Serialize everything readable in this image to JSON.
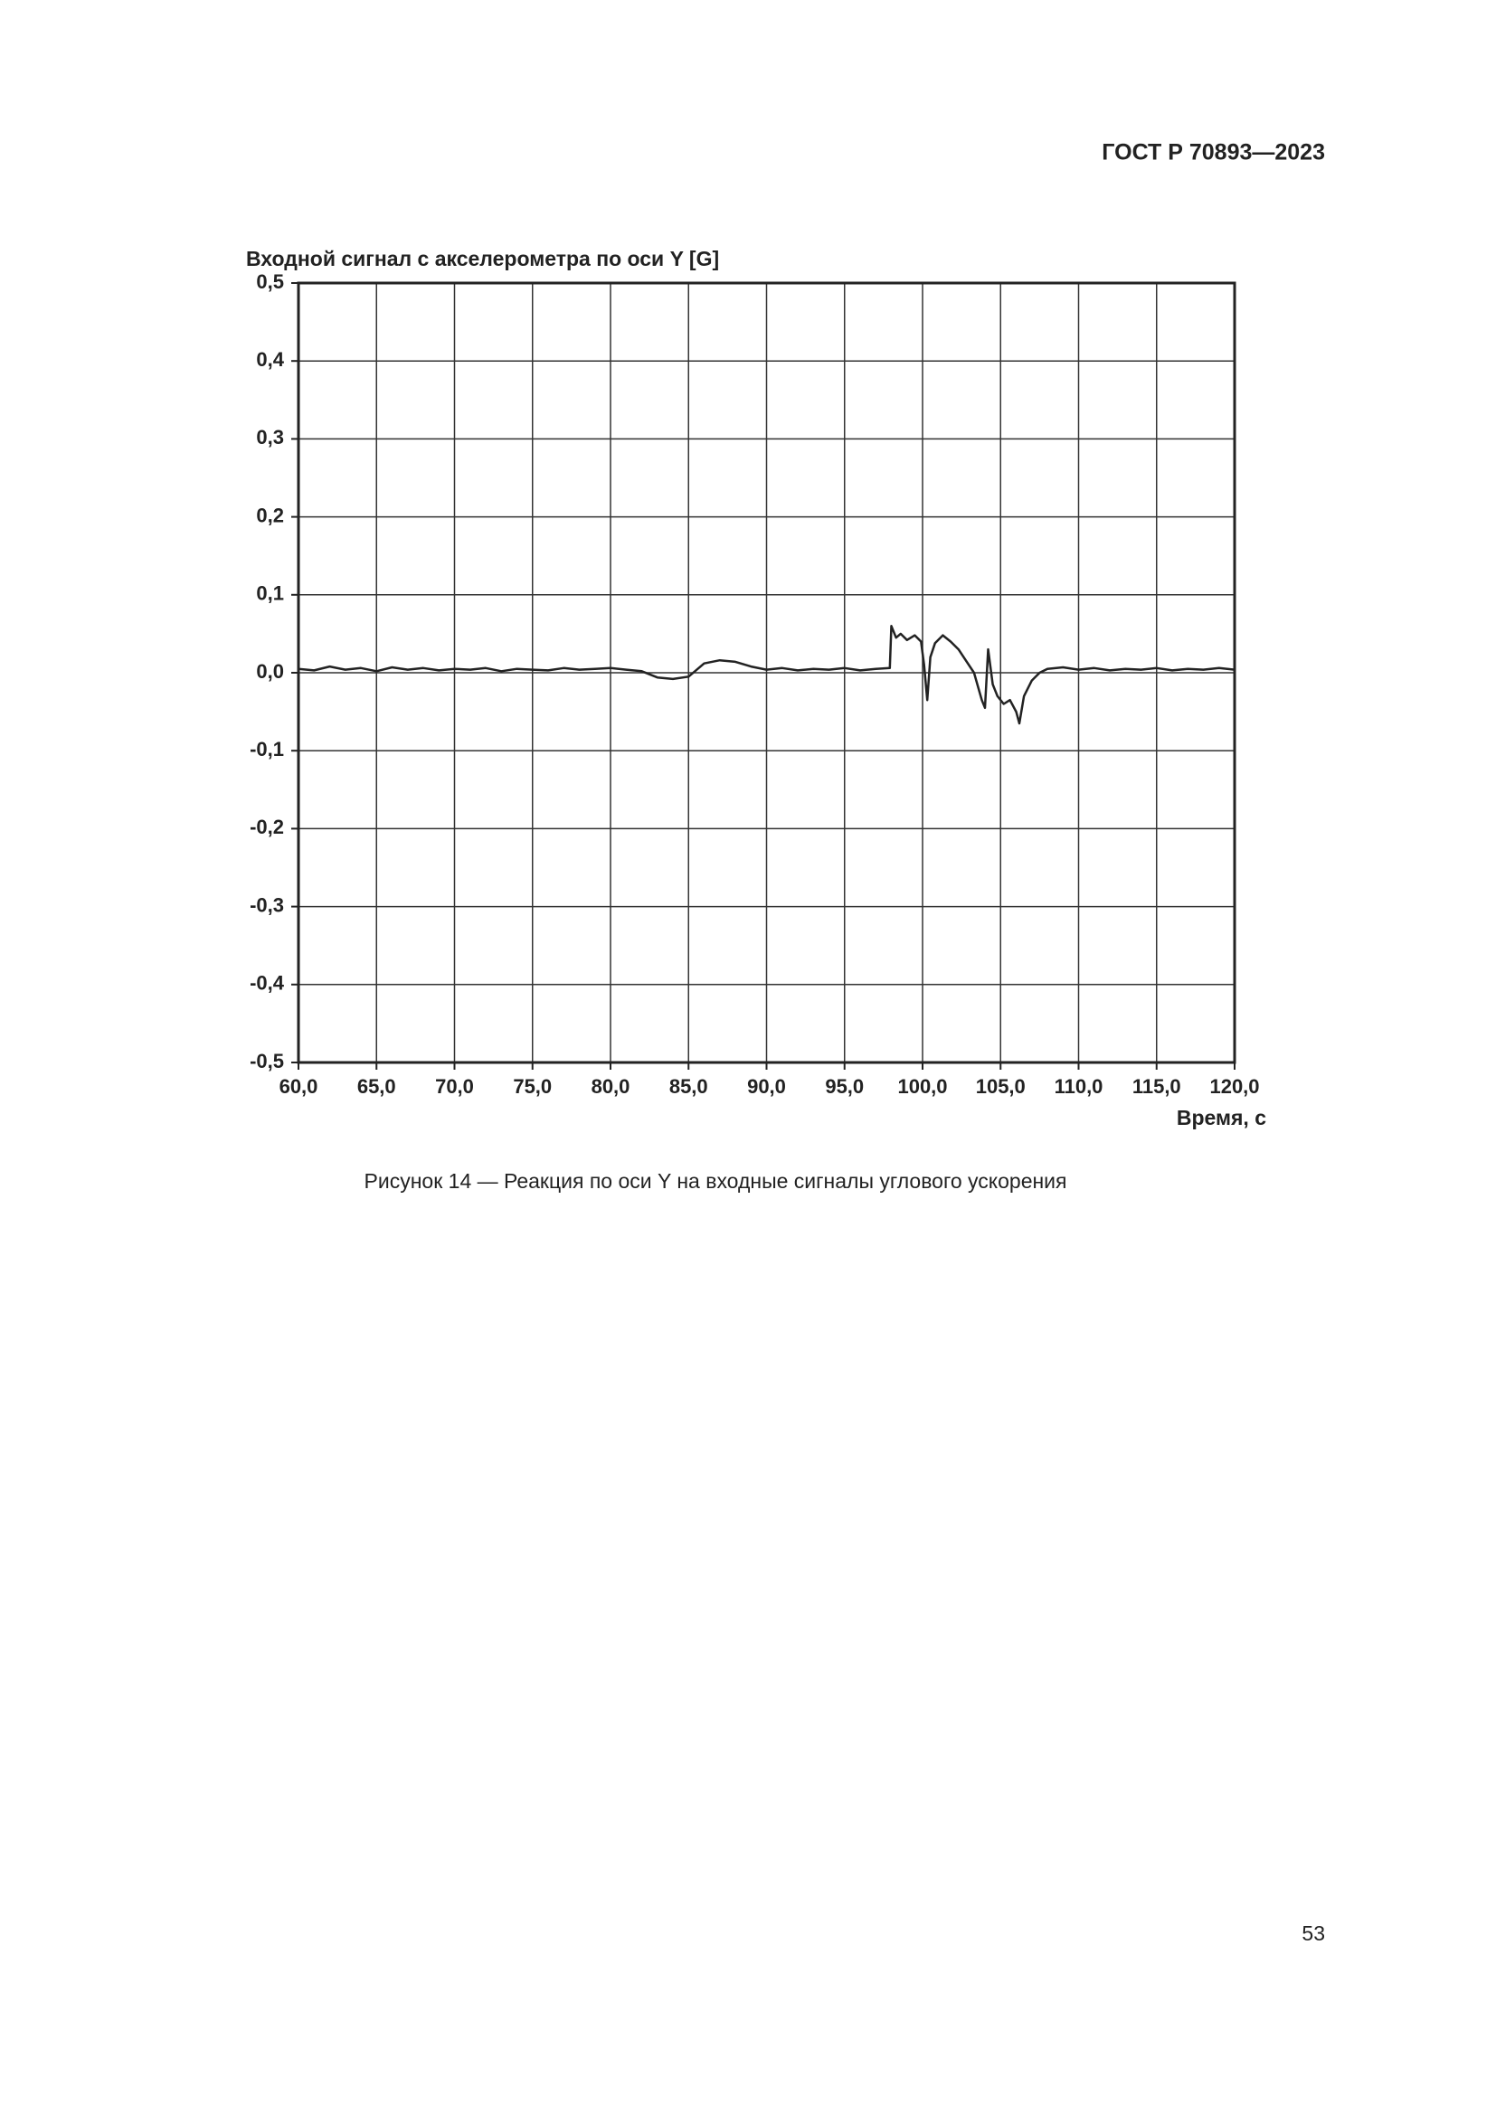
{
  "header": {
    "title": "ГОСТ Р 70893—2023"
  },
  "chart_data": {
    "type": "line",
    "ylabel": "Входной сигнал с акселерометра по оси Y [G]",
    "xlabel": "Время, с",
    "x": [
      60,
      61,
      62,
      63,
      64,
      65,
      66,
      67,
      68,
      69,
      70,
      71,
      72,
      73,
      74,
      75,
      76,
      77,
      78,
      79,
      80,
      81,
      82,
      83,
      84,
      85,
      86,
      87,
      88,
      89,
      90,
      91,
      92,
      93,
      94,
      95,
      96,
      97,
      97.9,
      98,
      98.3,
      98.6,
      99,
      99.5,
      99.9,
      100.1,
      100.3,
      100.5,
      100.8,
      101.3,
      101.8,
      102.3,
      102.8,
      103.3,
      103.8,
      104,
      104.2,
      104.5,
      104.8,
      105.2,
      105.6,
      106,
      106.2,
      106.5,
      107,
      107.5,
      108,
      109,
      110,
      111,
      112,
      113,
      114,
      115,
      116,
      117,
      118,
      119,
      120
    ],
    "values": [
      0.005,
      0.003,
      0.008,
      0.004,
      0.006,
      0.002,
      0.007,
      0.004,
      0.006,
      0.003,
      0.005,
      0.004,
      0.006,
      0.002,
      0.005,
      0.004,
      0.003,
      0.006,
      0.004,
      0.005,
      0.006,
      0.004,
      0.002,
      -0.006,
      -0.008,
      -0.005,
      0.012,
      0.016,
      0.014,
      0.008,
      0.004,
      0.006,
      0.003,
      0.005,
      0.004,
      0.006,
      0.003,
      0.005,
      0.006,
      0.06,
      0.045,
      0.05,
      0.042,
      0.048,
      0.04,
      0.01,
      -0.035,
      0.02,
      0.038,
      0.048,
      0.04,
      0.03,
      0.015,
      0.0,
      -0.035,
      -0.045,
      0.03,
      -0.015,
      -0.03,
      -0.04,
      -0.035,
      -0.05,
      -0.065,
      -0.03,
      -0.01,
      0.0,
      0.005,
      0.007,
      0.004,
      0.006,
      0.003,
      0.005,
      0.004,
      0.006,
      0.003,
      0.005,
      0.004,
      0.006,
      0.004
    ],
    "color": "#222222",
    "xlim": [
      60,
      120
    ],
    "ylim": [
      -0.5,
      0.5
    ],
    "xticks": [
      {
        "value": 60,
        "label": "60,0"
      },
      {
        "value": 65,
        "label": "65,0"
      },
      {
        "value": 70,
        "label": "70,0"
      },
      {
        "value": 75,
        "label": "75,0"
      },
      {
        "value": 80,
        "label": "80,0"
      },
      {
        "value": 85,
        "label": "85,0"
      },
      {
        "value": 90,
        "label": "90,0"
      },
      {
        "value": 95,
        "label": "95,0"
      },
      {
        "value": 100,
        "label": "100,0"
      },
      {
        "value": 105,
        "label": "105,0"
      },
      {
        "value": 110,
        "label": "110,0"
      },
      {
        "value": 115,
        "label": "115,0"
      },
      {
        "value": 120,
        "label": "120,0"
      }
    ],
    "yticks": [
      {
        "value": -0.5,
        "label": "-0,5"
      },
      {
        "value": -0.4,
        "label": "-0,4"
      },
      {
        "value": -0.3,
        "label": "-0,3"
      },
      {
        "value": -0.2,
        "label": "-0,2"
      },
      {
        "value": -0.1,
        "label": "-0,1"
      },
      {
        "value": 0,
        "label": "0,0"
      },
      {
        "value": 0.1,
        "label": "0,1"
      },
      {
        "value": 0.2,
        "label": "0,2"
      },
      {
        "value": 0.3,
        "label": "0,3"
      },
      {
        "value": 0.4,
        "label": "0,4"
      },
      {
        "value": 0.5,
        "label": "0,5"
      }
    ],
    "grid": true
  },
  "caption": "Рисунок 14 — Реакция по оси Y на входные сигналы углового ускорения",
  "page_number": "53"
}
